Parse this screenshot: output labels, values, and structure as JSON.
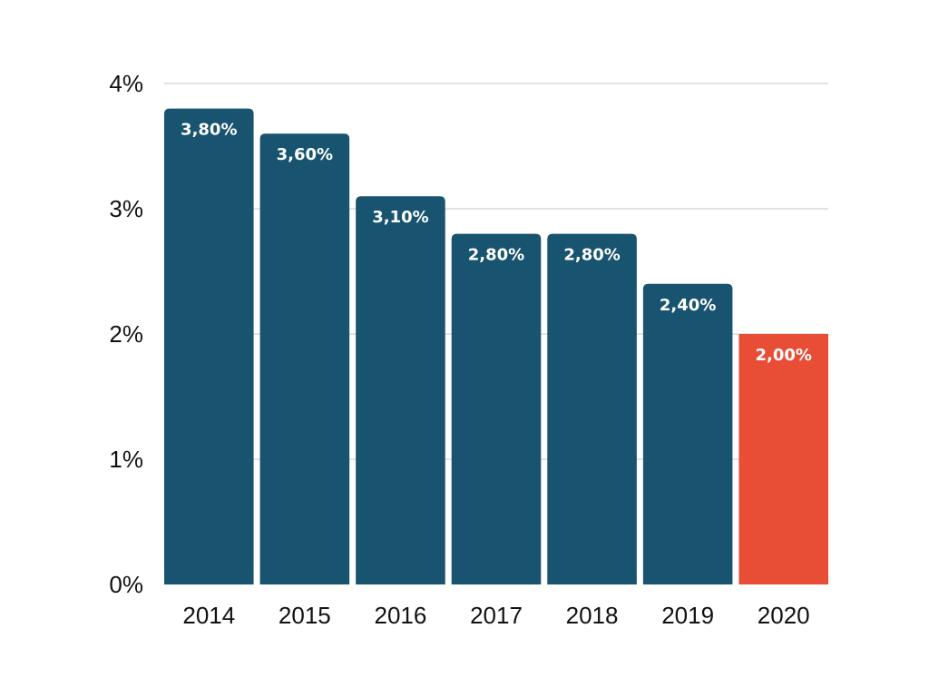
{
  "chart_data": {
    "type": "bar",
    "title": "",
    "xlabel": "",
    "ylabel": "",
    "categories": [
      "2014",
      "2015",
      "2016",
      "2017",
      "2018",
      "2019",
      "2020"
    ],
    "values": [
      3.8,
      3.6,
      3.1,
      2.8,
      2.8,
      2.4,
      2.0
    ],
    "data_labels": [
      "3,80%",
      "3,60%",
      "3,10%",
      "2,80%",
      "2,80%",
      "2,40%",
      "2,00%"
    ],
    "ylim": [
      0,
      4
    ],
    "yticks": [
      0,
      1,
      2,
      3,
      4
    ],
    "ytick_labels": [
      "0%",
      "1%",
      "2%",
      "3%",
      "4%"
    ],
    "grid": true,
    "legend": "none",
    "colors": {
      "default_bar": "#185370",
      "highlight_bar": "#e84e36",
      "highlight_category": "2020",
      "gridline": "#d9d9d9",
      "axis_text": "#111111",
      "label_text": "#ffffff"
    }
  }
}
